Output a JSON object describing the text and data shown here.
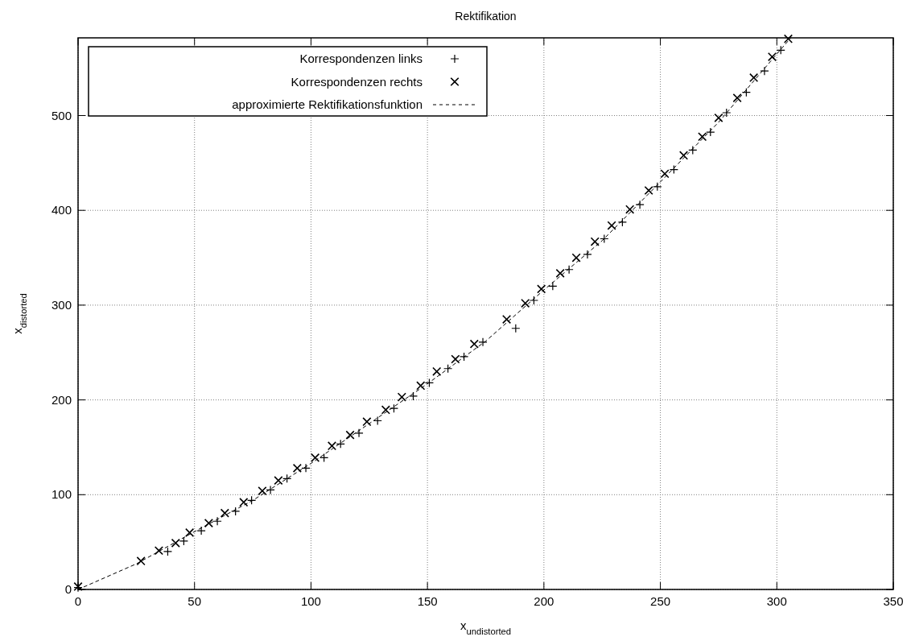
{
  "chart_data": {
    "type": "scatter",
    "title": "Rektifikation",
    "xlabel": "x$_{undistorted}$",
    "ylabel": "x$_{distorted}$",
    "xlim": [
      0,
      350
    ],
    "ylim": [
      0,
      582
    ],
    "xticks": [
      0,
      50,
      100,
      150,
      200,
      250,
      300,
      350
    ],
    "yticks": [
      0,
      100,
      200,
      300,
      400,
      500
    ],
    "grid": true,
    "legend": "top left",
    "series": [
      {
        "name": "Korrespondenzen links",
        "marker": "cross",
        "color": "#000000",
        "x": [
          0,
          38.5,
          45.4,
          52.9,
          59.8,
          67.6,
          74.5,
          82.6,
          89.7,
          97.8,
          105.6,
          112.7,
          120.6,
          128.6,
          135.6,
          143.9,
          150.8,
          158.8,
          165.7,
          173.8,
          187.9,
          195.7,
          203.8,
          210.8,
          218.7,
          225.9,
          233.7,
          241.2,
          248.7,
          255.8,
          263.9,
          271.5,
          278.4,
          286.9,
          294.7,
          301.7
        ],
        "values": [
          2,
          40,
          51,
          62,
          72,
          82.5,
          94,
          105,
          117,
          128,
          139,
          153.5,
          165,
          178,
          191,
          204,
          218,
          233,
          245.6,
          261,
          275.5,
          305,
          320,
          337.5,
          353.5,
          370,
          387.5,
          406,
          425,
          443,
          463.5,
          482.5,
          503,
          524.5,
          547,
          569
        ]
      },
      {
        "name": "Korrespondenzen rechts",
        "color": "#000000",
        "x": [
          0,
          27,
          34.7,
          41.9,
          47.9,
          56.1,
          63,
          71.1,
          79.1,
          86,
          94.1,
          101.8,
          109,
          116.8,
          124,
          132.1,
          139,
          147.1,
          154,
          162,
          170.1,
          184,
          192,
          198.9,
          207,
          213.9,
          221.9,
          229.1,
          236.9,
          245,
          251.9,
          260,
          268,
          275,
          283,
          290.1,
          298,
          304.9
        ],
        "values": [
          3,
          30,
          41,
          49,
          60,
          70,
          80.6,
          92,
          104,
          115,
          128,
          139,
          151.5,
          163,
          177,
          189.5,
          203,
          215,
          230,
          243,
          259,
          285,
          302,
          317,
          333.6,
          350,
          367,
          384,
          401,
          421,
          438.6,
          458,
          477.7,
          497.6,
          518.6,
          540,
          562,
          581
        ]
      },
      {
        "name": "approximierte Rektifikationsfunktion",
        "type": "line",
        "line_style": "dashed",
        "color": "#000000",
        "x": [
          0,
          25,
          50,
          75,
          100,
          125,
          150,
          175,
          200,
          225,
          250,
          275,
          300,
          306
        ],
        "values": [
          0,
          27,
          61,
          94,
          133,
          175,
          217,
          262,
          316,
          368,
          430,
          493,
          565,
          582
        ]
      }
    ]
  }
}
